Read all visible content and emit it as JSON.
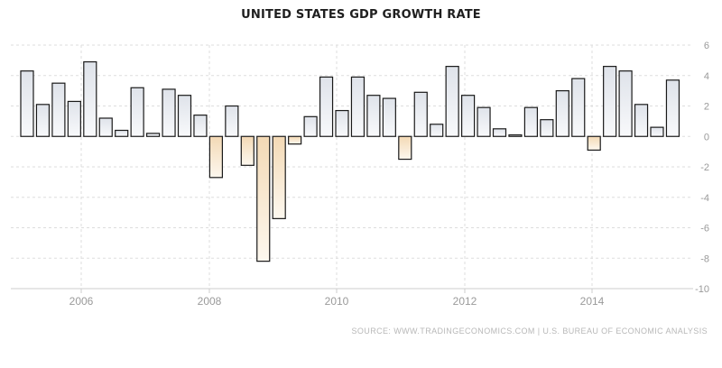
{
  "chart_data": {
    "type": "bar",
    "title": "UNITED STATES GDP GROWTH RATE",
    "source": "SOURCE: WWW.TRADINGECONOMICS.COM | U.S. BUREAU OF ECONOMIC ANALYSIS",
    "xlabel": "",
    "ylabel": "",
    "ylim": [
      -10,
      6
    ],
    "yticks": [
      6,
      4,
      2,
      0,
      -2,
      -4,
      -6,
      -8,
      -10
    ],
    "xticks": [
      "2006",
      "2008",
      "2010",
      "2012",
      "2014"
    ],
    "grid": true,
    "colors": {
      "positive_top": "#dfe3ea",
      "positive_bottom": "#f8f9fb",
      "negative_top": "#f3d9b5",
      "negative_bottom": "#fdf8ef",
      "bar_stroke": "#1a1a1a",
      "grid": "#dddddd",
      "axis_text": "#9a9a9a"
    },
    "categories": [
      "2005Q1",
      "2005Q2",
      "2005Q3",
      "2005Q4",
      "2006Q1",
      "2006Q2",
      "2006Q3",
      "2006Q4",
      "2007Q1",
      "2007Q2",
      "2007Q3",
      "2007Q4",
      "2008Q1",
      "2008Q2",
      "2008Q3",
      "2008Q4",
      "2009Q1",
      "2009Q2",
      "2009Q3",
      "2009Q4",
      "2010Q1",
      "2010Q2",
      "2010Q3",
      "2010Q4",
      "2011Q1",
      "2011Q2",
      "2011Q3",
      "2011Q4",
      "2012Q1",
      "2012Q2",
      "2012Q3",
      "2012Q4",
      "2013Q1",
      "2013Q2",
      "2013Q3",
      "2013Q4",
      "2014Q1",
      "2014Q2",
      "2014Q3",
      "2014Q4",
      "2015Q1",
      "2015Q2"
    ],
    "values": [
      4.3,
      2.1,
      3.5,
      2.3,
      4.9,
      1.2,
      0.4,
      3.2,
      0.2,
      3.1,
      2.7,
      1.4,
      -2.7,
      2.0,
      -1.9,
      -8.2,
      -5.4,
      -0.5,
      1.3,
      3.9,
      1.7,
      3.9,
      2.7,
      2.5,
      -1.5,
      2.9,
      0.8,
      4.6,
      2.7,
      1.9,
      0.5,
      0.1,
      1.9,
      1.1,
      3.0,
      3.8,
      -0.9,
      4.6,
      4.3,
      2.1,
      0.6,
      3.7
    ]
  }
}
